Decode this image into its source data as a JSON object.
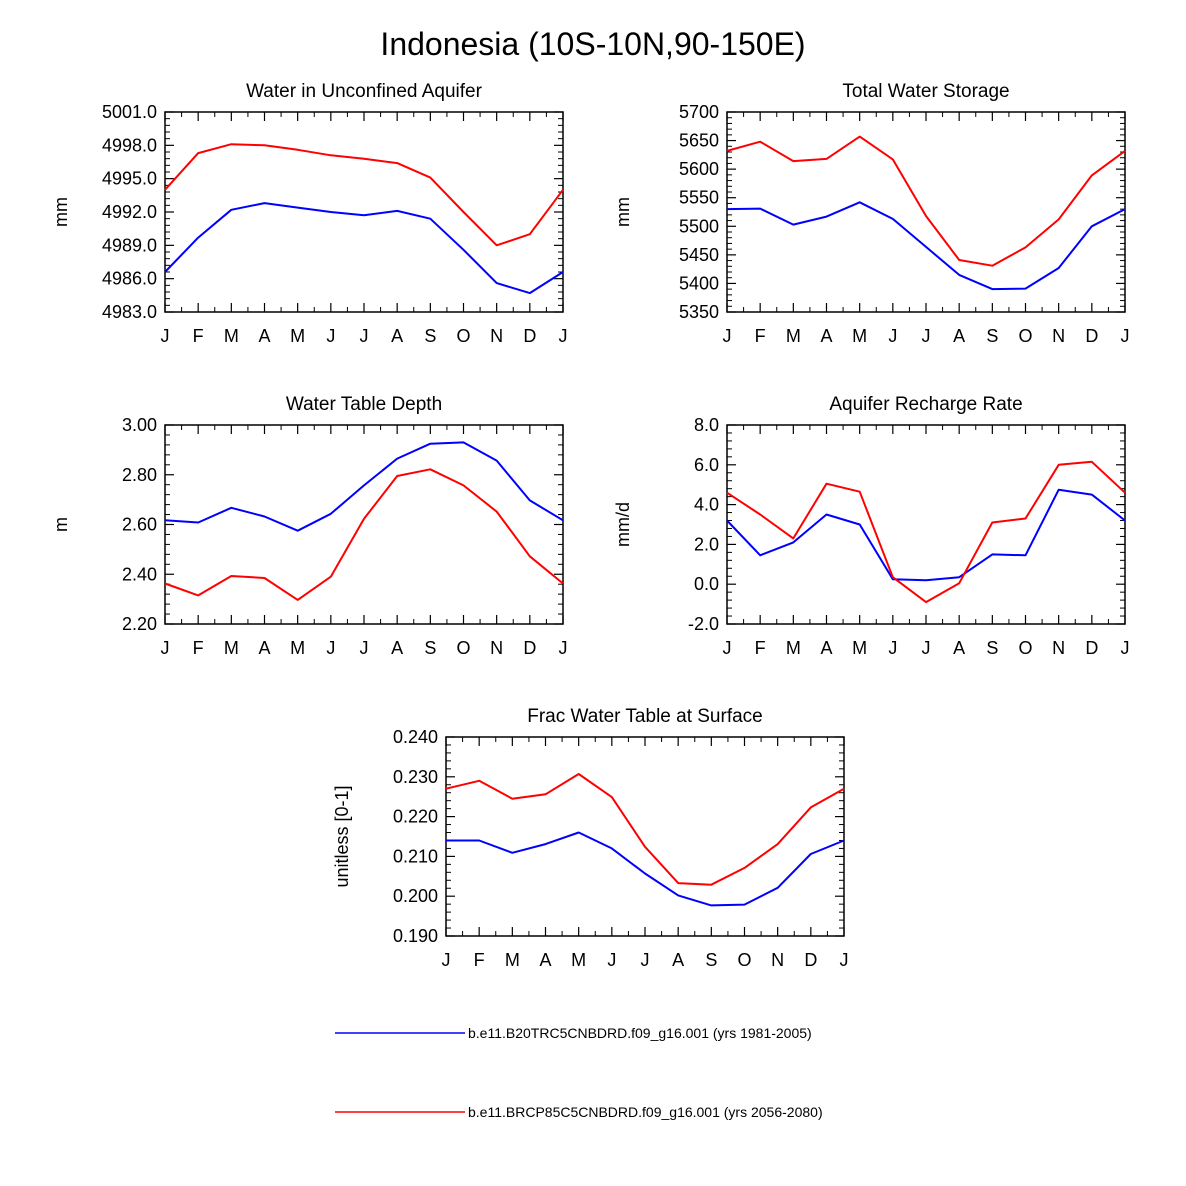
{
  "title": "Indonesia (10S-10N,90-150E)",
  "colors": {
    "series1": "#0000ff",
    "series2": "#ff0000",
    "axis": "#000000"
  },
  "legend": [
    {
      "label": "b.e11.B20TRC5CNBDRD.f09_g16.001 (yrs 1981-2005)",
      "color": "#0000ff"
    },
    {
      "label": "b.e11.BRCP85C5CNBDRD.f09_g16.001 (yrs 2056-2080)",
      "color": "#ff0000"
    }
  ],
  "chart_data": [
    {
      "type": "line",
      "title": "Water in Unconfined Aquifer",
      "xlabel": "",
      "ylabel": "mm",
      "categories": [
        "J",
        "F",
        "M",
        "A",
        "M",
        "J",
        "J",
        "A",
        "S",
        "O",
        "N",
        "D",
        "J"
      ],
      "ylim": [
        4983.0,
        5001.0
      ],
      "yticks": [
        "4983.0",
        "4986.0",
        "4989.0",
        "4992.0",
        "4995.0",
        "4998.0",
        "5001.0"
      ],
      "ytick_values": [
        4983,
        4986,
        4989,
        4992,
        4995,
        4998,
        5001
      ],
      "series": [
        {
          "name": "b.e11.B20TRC5CNBDRD.f09_g16.001 (yrs 1981-2005)",
          "color": "#0000ff",
          "values": [
            4986.6,
            4989.7,
            4992.2,
            4992.8,
            4992.4,
            4992.0,
            4991.7,
            4992.1,
            4991.4,
            4988.6,
            4985.6,
            4984.7,
            4986.6
          ]
        },
        {
          "name": "b.e11.BRCP85C5CNBDRD.f09_g16.001 (yrs 2056-2080)",
          "color": "#ff0000",
          "values": [
            4994.0,
            4997.3,
            4998.1,
            4998.0,
            4997.6,
            4997.1,
            4996.8,
            4996.4,
            4995.1,
            4992.0,
            4989.0,
            4990.0,
            4994.0
          ]
        }
      ]
    },
    {
      "type": "line",
      "title": "Total Water Storage",
      "xlabel": "",
      "ylabel": "mm",
      "categories": [
        "J",
        "F",
        "M",
        "A",
        "M",
        "J",
        "J",
        "A",
        "S",
        "O",
        "N",
        "D",
        "J"
      ],
      "ylim": [
        5350,
        5700
      ],
      "yticks": [
        "5350",
        "5400",
        "5450",
        "5500",
        "5550",
        "5600",
        "5650",
        "5700"
      ],
      "ytick_values": [
        5350,
        5400,
        5450,
        5500,
        5550,
        5600,
        5650,
        5700
      ],
      "series": [
        {
          "name": "b.e11.B20TRC5CNBDRD.f09_g16.001 (yrs 1981-2005)",
          "color": "#0000ff",
          "values": [
            5530,
            5531,
            5503,
            5517,
            5542,
            5513,
            5464,
            5415,
            5390,
            5391,
            5427,
            5500,
            5530
          ]
        },
        {
          "name": "b.e11.BRCP85C5CNBDRD.f09_g16.001 (yrs 2056-2080)",
          "color": "#ff0000",
          "values": [
            5632,
            5648,
            5614,
            5618,
            5657,
            5617,
            5518,
            5441,
            5431,
            5463,
            5512,
            5589,
            5632
          ]
        }
      ]
    },
    {
      "type": "line",
      "title": "Water Table Depth",
      "xlabel": "",
      "ylabel": "m",
      "categories": [
        "J",
        "F",
        "M",
        "A",
        "M",
        "J",
        "J",
        "A",
        "S",
        "O",
        "N",
        "D",
        "J"
      ],
      "ylim": [
        2.2,
        3.0
      ],
      "yticks": [
        "2.20",
        "2.40",
        "2.60",
        "2.80",
        "3.00"
      ],
      "ytick_values": [
        2.2,
        2.4,
        2.6,
        2.8,
        3.0
      ],
      "series": [
        {
          "name": "b.e11.B20TRC5CNBDRD.f09_g16.001 (yrs 1981-2005)",
          "color": "#0000ff",
          "values": [
            2.617,
            2.608,
            2.667,
            2.632,
            2.575,
            2.643,
            2.757,
            2.865,
            2.925,
            2.93,
            2.857,
            2.697,
            2.617
          ]
        },
        {
          "name": "b.e11.BRCP85C5CNBDRD.f09_g16.001 (yrs 2056-2080)",
          "color": "#ff0000",
          "values": [
            2.363,
            2.315,
            2.393,
            2.385,
            2.297,
            2.39,
            2.623,
            2.795,
            2.822,
            2.757,
            2.652,
            2.472,
            2.363
          ]
        }
      ]
    },
    {
      "type": "line",
      "title": "Aquifer Recharge Rate",
      "xlabel": "",
      "ylabel": "mm/d",
      "categories": [
        "J",
        "F",
        "M",
        "A",
        "M",
        "J",
        "J",
        "A",
        "S",
        "O",
        "N",
        "D",
        "J"
      ],
      "ylim": [
        -2.0,
        8.0
      ],
      "yticks": [
        "-2.0",
        "0.0",
        "2.0",
        "4.0",
        "6.0",
        "8.0"
      ],
      "ytick_values": [
        -2,
        0,
        2,
        4,
        6,
        8
      ],
      "series": [
        {
          "name": "b.e11.B20TRC5CNBDRD.f09_g16.001 (yrs 1981-2005)",
          "color": "#0000ff",
          "values": [
            3.2,
            1.45,
            2.1,
            3.5,
            3.0,
            0.25,
            0.2,
            0.35,
            1.5,
            1.45,
            4.75,
            4.5,
            3.2
          ]
        },
        {
          "name": "b.e11.BRCP85C5CNBDRD.f09_g16.001 (yrs 2056-2080)",
          "color": "#ff0000",
          "values": [
            4.6,
            3.5,
            2.3,
            5.05,
            4.65,
            0.35,
            -0.9,
            0.05,
            3.1,
            3.3,
            6.0,
            6.15,
            4.6
          ]
        }
      ]
    },
    {
      "type": "line",
      "title": "Frac Water Table at Surface",
      "xlabel": "",
      "ylabel": "unitless [0-1]",
      "categories": [
        "J",
        "F",
        "M",
        "A",
        "M",
        "J",
        "J",
        "A",
        "S",
        "O",
        "N",
        "D",
        "J"
      ],
      "ylim": [
        0.19,
        0.24
      ],
      "yticks": [
        "0.190",
        "0.200",
        "0.210",
        "0.220",
        "0.230",
        "0.240"
      ],
      "ytick_values": [
        0.19,
        0.2,
        0.21,
        0.22,
        0.23,
        0.24
      ],
      "series": [
        {
          "name": "b.e11.B20TRC5CNBDRD.f09_g16.001 (yrs 1981-2005)",
          "color": "#0000ff",
          "values": [
            0.214,
            0.214,
            0.2109,
            0.2131,
            0.216,
            0.212,
            0.2057,
            0.2002,
            0.1977,
            0.1979,
            0.2021,
            0.2106,
            0.214
          ]
        },
        {
          "name": "b.e11.BRCP85C5CNBDRD.f09_g16.001 (yrs 2056-2080)",
          "color": "#ff0000",
          "values": [
            0.227,
            0.229,
            0.2245,
            0.2256,
            0.2307,
            0.2249,
            0.2124,
            0.2033,
            0.2029,
            0.2071,
            0.2131,
            0.2223,
            0.227
          ]
        }
      ]
    }
  ]
}
